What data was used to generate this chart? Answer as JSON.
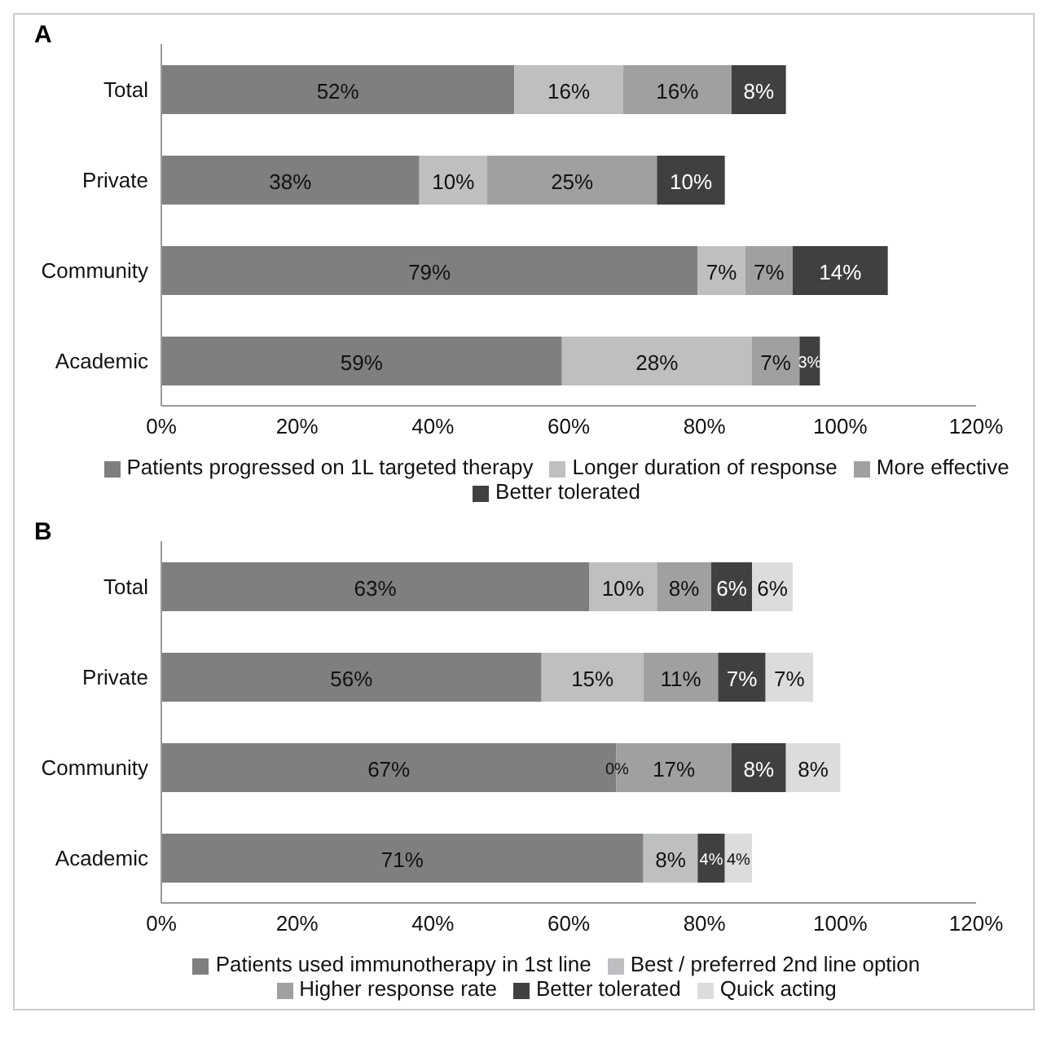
{
  "chart_data": [
    {
      "type": "bar",
      "title": "A",
      "orientation": "horizontal",
      "stacked": true,
      "categories": [
        "Total",
        "Private",
        "Community",
        "Academic"
      ],
      "xlim": [
        0,
        120
      ],
      "xticks": [
        {
          "value": 0,
          "label": "0%"
        },
        {
          "value": 20,
          "label": "20%"
        },
        {
          "value": 40,
          "label": "40%"
        },
        {
          "value": 60,
          "label": "60%"
        },
        {
          "value": 80,
          "label": "80%"
        },
        {
          "value": 100,
          "label": "100%"
        },
        {
          "value": 120,
          "label": "120%"
        }
      ],
      "grid": false,
      "legend": "bottom",
      "series": [
        {
          "name": "Patients progressed on 1L targeted therapy",
          "color": "#7f7f81",
          "values": [
            52,
            38,
            79,
            59
          ],
          "value_labels": [
            "52%",
            "38%",
            "79%",
            "59%"
          ]
        },
        {
          "name": "Longer duration of response",
          "color": "#bebfc1",
          "values": [
            16,
            10,
            7,
            28
          ],
          "value_labels": [
            "16%",
            "10%",
            "7%",
            "28%"
          ]
        },
        {
          "name": "More effective",
          "color": "#a0a0a0",
          "values": [
            16,
            25,
            7,
            7
          ],
          "value_labels": [
            "16%",
            "25%",
            "7%",
            "7%"
          ]
        },
        {
          "name": "Better tolerated",
          "color": "#404040",
          "values": [
            8,
            10,
            14,
            3
          ],
          "value_labels": [
            "8%",
            "10%",
            "14%",
            "3%"
          ]
        }
      ]
    },
    {
      "type": "bar",
      "title": "B",
      "orientation": "horizontal",
      "stacked": true,
      "categories": [
        "Total",
        "Private",
        "Community",
        "Academic"
      ],
      "xlim": [
        0,
        120
      ],
      "xticks": [
        {
          "value": 0,
          "label": "0%"
        },
        {
          "value": 20,
          "label": "20%"
        },
        {
          "value": 40,
          "label": "40%"
        },
        {
          "value": 60,
          "label": "60%"
        },
        {
          "value": 80,
          "label": "80%"
        },
        {
          "value": 100,
          "label": "100%"
        },
        {
          "value": 120,
          "label": "120%"
        }
      ],
      "grid": false,
      "legend": "bottom",
      "series": [
        {
          "name": "Patients used immunotherapy in 1st line",
          "color": "#7f7f81",
          "values": [
            63,
            56,
            67,
            71
          ],
          "value_labels": [
            "63%",
            "56%",
            "67%",
            "71%"
          ]
        },
        {
          "name": "Best / preferred 2nd line option",
          "color": "#bebfc1",
          "values": [
            10,
            15,
            0,
            8
          ],
          "value_labels": [
            "10%",
            "15%",
            "0%",
            "8%"
          ]
        },
        {
          "name": "Higher response rate",
          "color": "#a0a0a0",
          "values": [
            8,
            11,
            17,
            null
          ],
          "value_labels": [
            "8%",
            "11%",
            "17%",
            null
          ]
        },
        {
          "name": "Better tolerated",
          "color": "#404040",
          "values": [
            6,
            7,
            8,
            4
          ],
          "value_labels": [
            "6%",
            "7%",
            "8%",
            "4%"
          ]
        },
        {
          "name": "Quick acting",
          "color": "#dcdcdc",
          "values": [
            6,
            7,
            8,
            4
          ],
          "value_labels": [
            "6%",
            "7%",
            "8%",
            "4%"
          ]
        }
      ]
    }
  ]
}
